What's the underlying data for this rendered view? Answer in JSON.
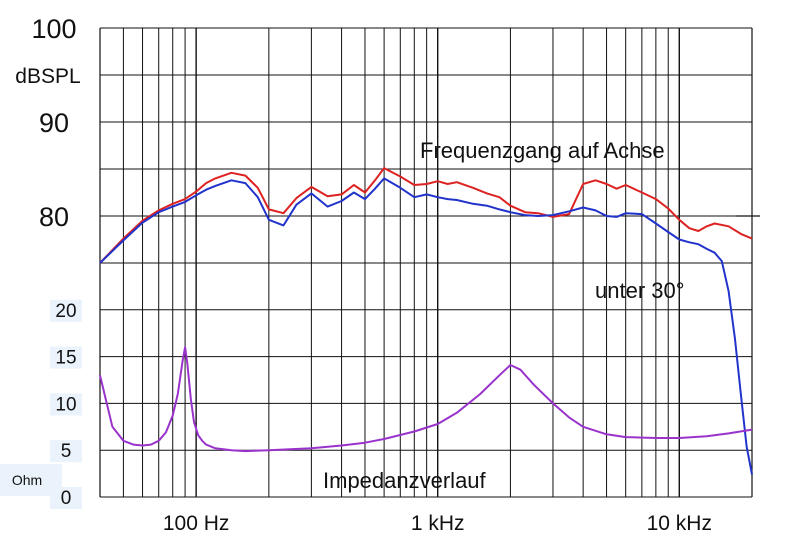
{
  "chart_data": {
    "type": "line",
    "x_scale": "log",
    "x_range": [
      40,
      20000
    ],
    "grid": true,
    "x_ticks": [
      {
        "value": 100,
        "label": "100 Hz"
      },
      {
        "value": 1000,
        "label": "1 kHz"
      },
      {
        "value": 10000,
        "label": "10 kHz"
      }
    ],
    "spl_axis": {
      "unit": "dBSPL",
      "range": [
        75,
        100
      ],
      "ticks": [
        {
          "value": 100,
          "label": "100"
        },
        {
          "value": 90,
          "label": "90"
        },
        {
          "value": 80,
          "label": "80"
        }
      ]
    },
    "impedance_axis": {
      "unit": "Ohm",
      "range": [
        0,
        25
      ],
      "ticks": [
        {
          "value": 20,
          "label": "20"
        },
        {
          "value": 15,
          "label": "15"
        },
        {
          "value": 10,
          "label": "10"
        },
        {
          "value": 5,
          "label": "5"
        },
        {
          "value": 0,
          "label": "0"
        }
      ]
    },
    "series": [
      {
        "name": "Frequenzgang auf Achse",
        "axis": "spl",
        "color": "#dd2222",
        "x": [
          40,
          50,
          60,
          70,
          80,
          90,
          100,
          110,
          120,
          140,
          160,
          180,
          200,
          230,
          260,
          300,
          350,
          400,
          450,
          500,
          550,
          600,
          700,
          800,
          900,
          1000,
          1100,
          1200,
          1400,
          1600,
          1800,
          2000,
          2300,
          2600,
          3000,
          3500,
          4000,
          4500,
          5000,
          5500,
          6000,
          7000,
          8000,
          9000,
          10000,
          11000,
          12000,
          13000,
          14000,
          16000,
          18000,
          20000
        ],
        "y": [
          75.0,
          77.6,
          79.5,
          80.6,
          81.3,
          81.8,
          82.6,
          83.5,
          84.0,
          84.6,
          84.3,
          83.0,
          80.7,
          80.3,
          81.9,
          83.1,
          82.1,
          82.3,
          83.3,
          82.5,
          83.8,
          85.1,
          84.2,
          83.3,
          83.4,
          83.7,
          83.4,
          83.6,
          83.0,
          82.4,
          82.0,
          81.1,
          80.4,
          80.3,
          79.9,
          80.2,
          83.4,
          83.8,
          83.4,
          82.9,
          83.3,
          82.5,
          81.8,
          80.8,
          79.6,
          78.7,
          78.4,
          78.9,
          79.2,
          78.9,
          78.1,
          77.6
        ]
      },
      {
        "name": "unter 30°",
        "axis": "spl",
        "color": "#2233cc",
        "x": [
          40,
          50,
          60,
          70,
          80,
          90,
          100,
          110,
          120,
          140,
          160,
          180,
          200,
          230,
          260,
          300,
          350,
          400,
          450,
          500,
          550,
          600,
          700,
          800,
          900,
          1000,
          1100,
          1200,
          1400,
          1600,
          1800,
          2000,
          2300,
          2600,
          3000,
          3500,
          4000,
          4500,
          5000,
          5500,
          6000,
          7000,
          8000,
          9000,
          10000,
          11000,
          12000,
          13000,
          14000,
          15000,
          16000,
          17000,
          18000,
          19000,
          20000
        ],
        "y": [
          75.0,
          77.4,
          79.3,
          80.4,
          81.0,
          81.5,
          82.2,
          82.8,
          83.2,
          83.8,
          83.5,
          82.0,
          79.6,
          79.0,
          81.2,
          82.4,
          81.0,
          81.6,
          82.5,
          81.8,
          82.9,
          84.0,
          83.0,
          82.0,
          82.3,
          82.0,
          81.8,
          81.7,
          81.3,
          81.1,
          80.7,
          80.4,
          80.1,
          80.0,
          80.1,
          80.5,
          80.9,
          80.6,
          80.0,
          79.9,
          80.3,
          80.2,
          79.2,
          78.3,
          77.5,
          77.2,
          77.0,
          76.5,
          76.1,
          75.2,
          72.0,
          67.0,
          61.0,
          55.5,
          52.5
        ]
      },
      {
        "name": "Impedanzverlauf",
        "axis": "impedance",
        "color": "#9933cc",
        "x": [
          40,
          45,
          50,
          55,
          60,
          65,
          70,
          75,
          80,
          84,
          88,
          90,
          92,
          95,
          98,
          102,
          106,
          110,
          120,
          140,
          160,
          200,
          300,
          400,
          500,
          600,
          800,
          1000,
          1200,
          1500,
          1800,
          2000,
          2200,
          2500,
          3000,
          3500,
          4000,
          5000,
          6000,
          8000,
          10000,
          13000,
          16000,
          20000
        ],
        "y": [
          13.0,
          7.5,
          6.0,
          5.6,
          5.5,
          5.6,
          6.0,
          6.9,
          8.7,
          11.0,
          14.6,
          16.0,
          14.2,
          10.5,
          8.0,
          6.6,
          6.0,
          5.6,
          5.2,
          5.0,
          4.9,
          5.0,
          5.2,
          5.5,
          5.8,
          6.2,
          7.0,
          7.8,
          9.0,
          11.0,
          13.0,
          14.1,
          13.6,
          12.0,
          10.0,
          8.5,
          7.5,
          6.7,
          6.4,
          6.3,
          6.3,
          6.5,
          6.8,
          7.2
        ]
      }
    ],
    "annotations": {
      "on_axis": "Frequenzgang auf Achse",
      "off_axis": "unter 30°",
      "impedance": "Impedanzverlauf"
    }
  }
}
